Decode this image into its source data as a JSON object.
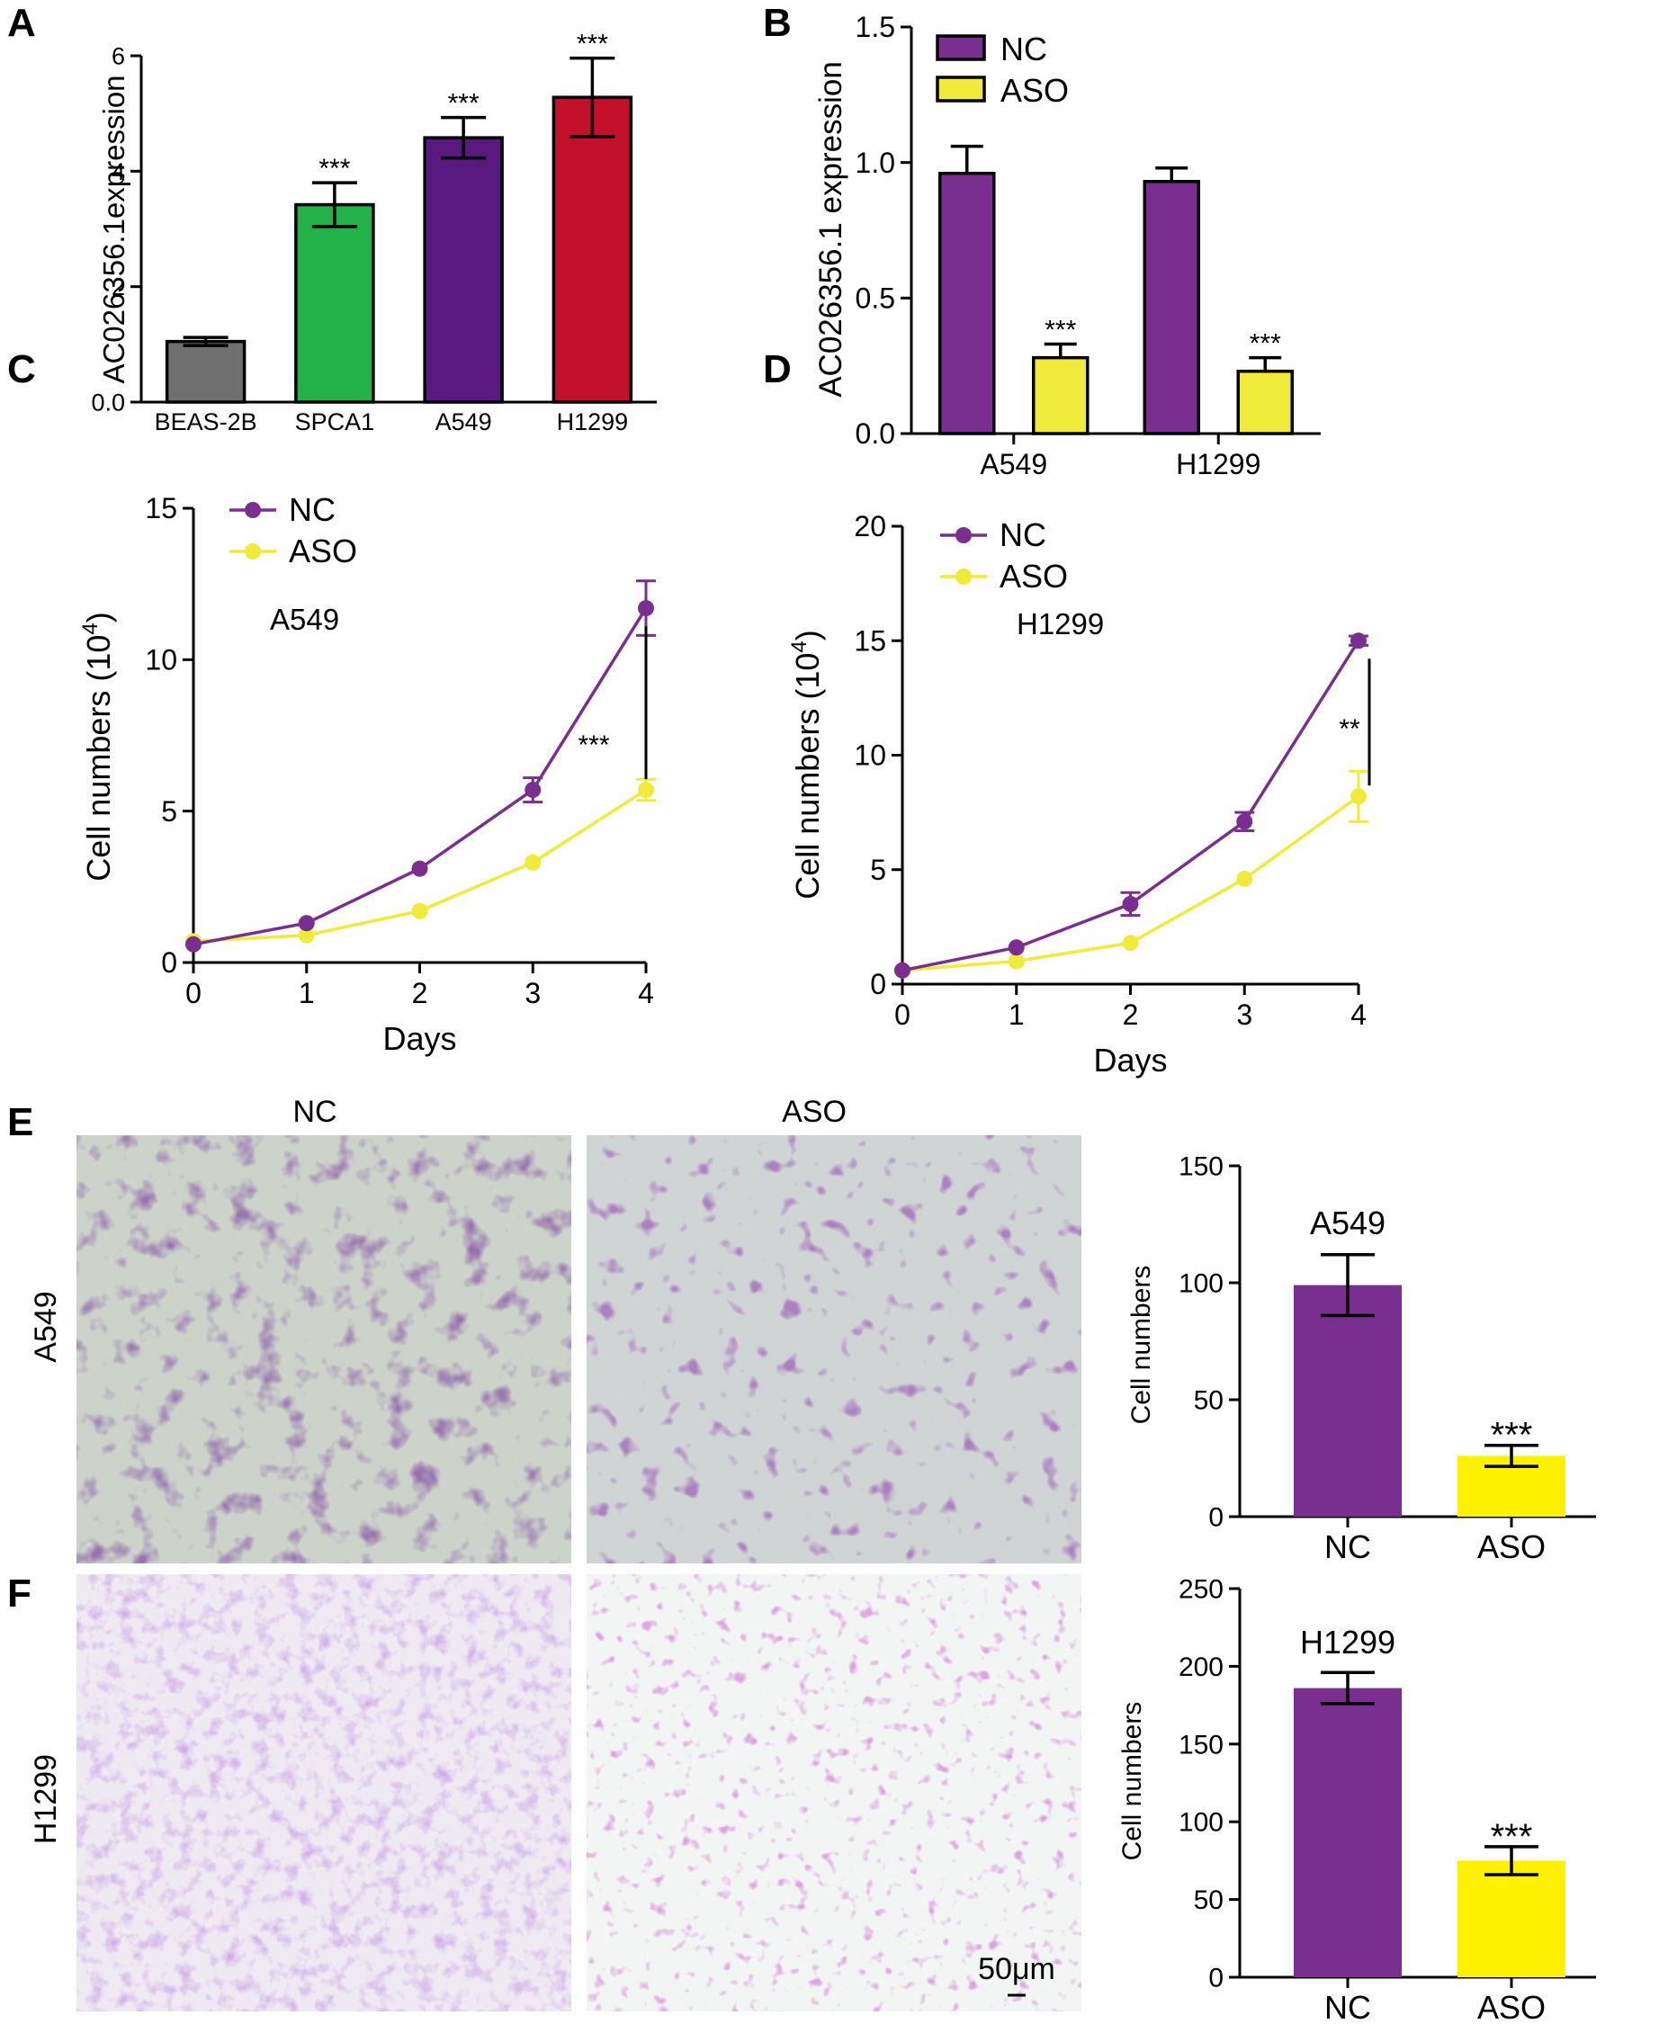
{
  "colors": {
    "gray": "#6f6f6f",
    "green": "#23b24a",
    "purple": "#7a2e8f",
    "red": "#c3102b",
    "yellow": "#f0ea3a",
    "yellow_bright": "#fff200"
  },
  "chart_data": [
    {
      "panel": "A",
      "type": "bar",
      "categories": [
        "BEAS-2B",
        "SPCA1",
        "A549",
        "H1299"
      ],
      "values": [
        1.05,
        3.42,
        4.58,
        5.28
      ],
      "errors": [
        0.07,
        0.38,
        0.35,
        0.68
      ],
      "significance": [
        "",
        "***",
        "***",
        "***"
      ],
      "bar_colors": [
        "#6f6f6f",
        "#23b24a",
        "#59197f",
        "#c3102b"
      ],
      "ylabel": "AC026356.1expression",
      "ylim": [
        0,
        6
      ],
      "yticks": [
        "0.0",
        "2",
        "4",
        "6"
      ],
      "ytick_values": [
        0,
        2,
        4,
        6
      ]
    },
    {
      "panel": "B",
      "type": "bar",
      "categories": [
        "A549",
        "H1299"
      ],
      "series": [
        {
          "name": "NC",
          "values": [
            0.96,
            0.93
          ],
          "errors": [
            0.1,
            0.05
          ],
          "significance": [
            "",
            ""
          ]
        },
        {
          "name": "ASO",
          "values": [
            0.28,
            0.23
          ],
          "errors": [
            0.05,
            0.05
          ],
          "significance": [
            "***",
            "***"
          ]
        }
      ],
      "ylabel": "AC026356.1 expression",
      "ylim": [
        0,
        1.5
      ],
      "yticks": [
        "0.0",
        "0.5",
        "1.0",
        "1.5"
      ],
      "ytick_values": [
        0,
        0.5,
        1.0,
        1.5
      ],
      "legend": "top-left"
    },
    {
      "panel": "C",
      "type": "line",
      "x": [
        0,
        1,
        2,
        3,
        4
      ],
      "series": [
        {
          "name": "NC",
          "values": [
            0.6,
            1.3,
            3.1,
            5.7,
            11.7
          ],
          "errors": [
            0.1,
            0.1,
            0.1,
            0.4,
            0.9
          ]
        },
        {
          "name": "ASO",
          "values": [
            0.7,
            0.9,
            1.7,
            3.3,
            5.7
          ],
          "errors": [
            0.1,
            0.1,
            0.1,
            0.1,
            0.35
          ]
        }
      ],
      "annotation": "A549",
      "significance": "***",
      "xlabel": "Days",
      "ylabel_main": "Cell numbers (10",
      "ylabel_sup": "4",
      "ylabel_end": ")",
      "xlim": [
        0,
        4
      ],
      "ylim": [
        0,
        15
      ],
      "xticks": [
        "0",
        "1",
        "2",
        "3",
        "4"
      ],
      "yticks": [
        "0",
        "5",
        "10",
        "15"
      ],
      "ytick_values": [
        0,
        5,
        10,
        15
      ],
      "legend": "top-left"
    },
    {
      "panel": "D",
      "type": "line",
      "x": [
        0,
        1,
        2,
        3,
        4
      ],
      "series": [
        {
          "name": "NC",
          "values": [
            0.6,
            1.6,
            3.5,
            7.1,
            15.0
          ],
          "errors": [
            0.1,
            0.1,
            0.5,
            0.4,
            0.2
          ]
        },
        {
          "name": "ASO",
          "values": [
            0.6,
            1.0,
            1.8,
            4.6,
            8.2
          ],
          "errors": [
            0.1,
            0.1,
            0.1,
            0.1,
            1.1
          ]
        }
      ],
      "annotation": "H1299",
      "significance": "**",
      "xlabel": "Days",
      "ylabel_main": "Cell numbers (10",
      "ylabel_sup": "4",
      "ylabel_end": ")",
      "xlim": [
        0,
        4
      ],
      "ylim": [
        0,
        20
      ],
      "xticks": [
        "0",
        "1",
        "2",
        "3",
        "4"
      ],
      "yticks": [
        "0",
        "5",
        "10",
        "15",
        "20"
      ],
      "ytick_values": [
        0,
        5,
        10,
        15,
        20
      ],
      "legend": "top-left"
    },
    {
      "panel": "E",
      "type": "bar",
      "categories": [
        "NC",
        "ASO"
      ],
      "values": [
        99,
        26
      ],
      "errors": [
        13,
        4.5
      ],
      "significance": [
        "",
        "***"
      ],
      "bar_colors": [
        "#7a2e8f",
        "#fff200"
      ],
      "annotation": "A549",
      "ylabel": "Cell numbers",
      "ylim": [
        0,
        150
      ],
      "yticks": [
        "0",
        "50",
        "100",
        "150"
      ],
      "ytick_values": [
        0,
        50,
        100,
        150
      ]
    },
    {
      "panel": "F",
      "type": "bar",
      "categories": [
        "NC",
        "ASO"
      ],
      "values": [
        186,
        75
      ],
      "errors": [
        10,
        9
      ],
      "significance": [
        "",
        "***"
      ],
      "bar_colors": [
        "#7a2e8f",
        "#fff200"
      ],
      "annotation": "H1299",
      "ylabel": "Cell numbers",
      "ylim": [
        0,
        250
      ],
      "yticks": [
        "0",
        "50",
        "100",
        "150",
        "200",
        "250"
      ],
      "ytick_values": [
        0,
        50,
        100,
        150,
        200,
        250
      ]
    }
  ],
  "micrographs": {
    "column_labels": [
      "NC",
      "ASO"
    ],
    "row_labels": [
      "A549",
      "H1299"
    ],
    "scale_bar": "50μm"
  }
}
